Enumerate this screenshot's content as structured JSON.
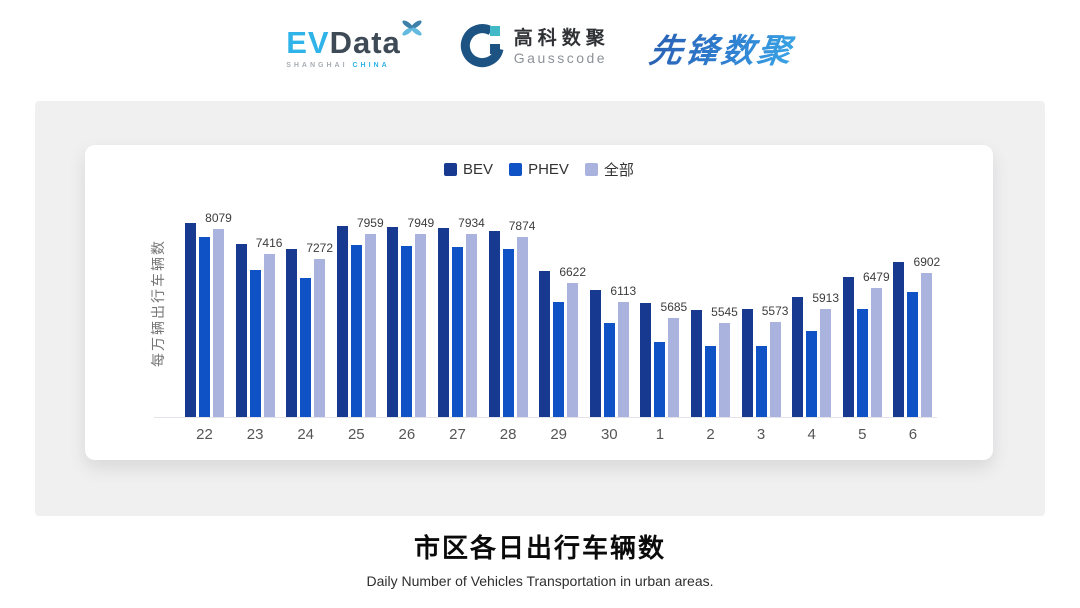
{
  "header": {
    "evdata": {
      "ev": "EV",
      "data": "Data",
      "tagline_left": "SHANGHAI",
      "tagline_right": "CHINA"
    },
    "gausscode": {
      "cn": "高科数聚",
      "en": "Gausscode"
    },
    "pioneer": {
      "text": "先锋数聚"
    }
  },
  "caption": {
    "title": "市区各日出行车辆数",
    "subtitle": "Daily Number of Vehicles Transportation in urban areas."
  },
  "colors": {
    "bev": "#17398f",
    "phev": "#0e52c6",
    "all": "#a9b3de",
    "panel_bg": "#f0f0f1",
    "axis_line": "#e4e4ea"
  },
  "chart_data": {
    "type": "bar",
    "title": "市区各日出行车辆数",
    "subtitle": "Daily Number of Vehicles Transportation in urban areas.",
    "ylabel": "每万辆出行车辆数",
    "xlabel": "",
    "categories": [
      "22",
      "23",
      "24",
      "25",
      "26",
      "27",
      "28",
      "29",
      "30",
      "1",
      "2",
      "3",
      "4",
      "5",
      "6"
    ],
    "series": [
      {
        "name": "BEV",
        "color": "#17398f",
        "values": [
          8250,
          7680,
          7550,
          8150,
          8130,
          8110,
          8030,
          6940,
          6430,
          6070,
          5890,
          5930,
          6230,
          6790,
          7190
        ]
      },
      {
        "name": "PHEV",
        "color": "#0e52c6",
        "values": [
          7860,
          6980,
          6760,
          7640,
          7610,
          7590,
          7550,
          6100,
          5530,
          5020,
          4920,
          4920,
          5330,
          5910,
          6370
        ]
      },
      {
        "name": "全部",
        "color": "#a9b3de",
        "show_labels": true,
        "values": [
          8079,
          7416,
          7272,
          7959,
          7949,
          7934,
          7874,
          6622,
          6113,
          5685,
          5545,
          5573,
          5913,
          6479,
          6902
        ]
      }
    ],
    "data_labels": [
      8079,
      7416,
      7272,
      7959,
      7949,
      7934,
      7874,
      6622,
      6113,
      5685,
      5545,
      5573,
      5913,
      6479,
      6902
    ],
    "ylim": [
      3000,
      9000
    ],
    "grid": false,
    "legend_position": "top"
  }
}
